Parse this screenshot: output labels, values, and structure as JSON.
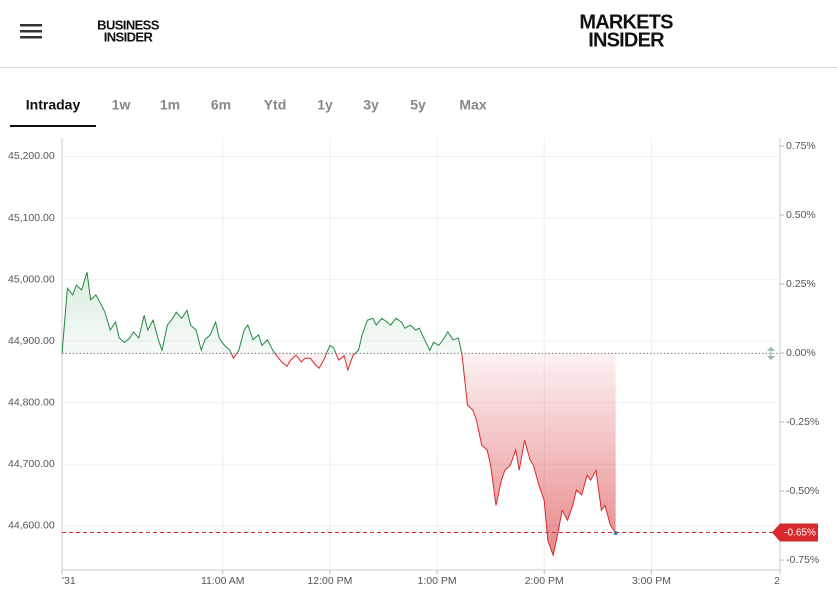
{
  "header": {
    "left_logo": [
      "BUSINESS",
      "INSIDER"
    ],
    "right_logo": [
      "MARKETS",
      "INSIDER"
    ]
  },
  "tabs": [
    "Intraday",
    "1w",
    "1m",
    "6m",
    "Ytd",
    "1y",
    "3y",
    "5y",
    "Max"
  ],
  "active_tab": 0,
  "chart_data": {
    "type": "line",
    "x": [
      570,
      573,
      576,
      578,
      581,
      584,
      586,
      589,
      592,
      594,
      597,
      600,
      602,
      605,
      608,
      610,
      613,
      616,
      618,
      621,
      624,
      626,
      629,
      632,
      634,
      637,
      640,
      642,
      645,
      648,
      650,
      653,
      656,
      658,
      661,
      664,
      666,
      669,
      672,
      674,
      677,
      680,
      682,
      685,
      688,
      690,
      693,
      696,
      698,
      701,
      704,
      706,
      709,
      712,
      714,
      717,
      720,
      722,
      725,
      728,
      730,
      733,
      736,
      738,
      741,
      744,
      746,
      749,
      752,
      754,
      757,
      760,
      762,
      765,
      768,
      770,
      773,
      776,
      778,
      781,
      784,
      786,
      789,
      792,
      794,
      797,
      800,
      802,
      805,
      808,
      810,
      813,
      816,
      818,
      821,
      824,
      826,
      829,
      832,
      834,
      837,
      840,
      842,
      845,
      848,
      850,
      853,
      856,
      858,
      861,
      864,
      866,
      869,
      872,
      874,
      877,
      880
    ],
    "values": [
      44880,
      44986,
      44975,
      44991,
      44983,
      45012,
      44967,
      44975,
      44959,
      44947,
      44918,
      44931,
      44905,
      44898,
      44905,
      44915,
      44905,
      44942,
      44918,
      44934,
      44902,
      44885,
      44926,
      44937,
      44947,
      44937,
      44950,
      44926,
      44918,
      44885,
      44902,
      44910,
      44931,
      44905,
      44893,
      44885,
      44872,
      44885,
      44918,
      44926,
      44902,
      44910,
      44893,
      44902,
      44885,
      44877,
      44866,
      44859,
      44869,
      44877,
      44866,
      44872,
      44872,
      44861,
      44856,
      44872,
      44893,
      44889,
      44869,
      44876,
      44853,
      44877,
      44885,
      44910,
      44934,
      44937,
      44926,
      44937,
      44931,
      44926,
      44937,
      44931,
      44921,
      44926,
      44918,
      44921,
      44902,
      44885,
      44898,
      44893,
      44905,
      44915,
      44902,
      44905,
      44877,
      44796,
      44788,
      44772,
      44731,
      44723,
      44698,
      44633,
      44674,
      44690,
      44698,
      44723,
      44690,
      44739,
      44707,
      44698,
      44666,
      44641,
      44576,
      44552,
      44593,
      44625,
      44609,
      44633,
      44658,
      44650,
      44682,
      44674,
      44690,
      44625,
      44633,
      44601,
      44588
    ],
    "previous_close": 44880,
    "colors": {
      "up": "#1f8a3e",
      "down": "#d62a2e",
      "last_point": "#3a86c8"
    },
    "xlim": [
      570,
      972
    ],
    "xticks": [
      {
        "value": 570,
        "label": "'31"
      },
      {
        "value": 660,
        "label": "11:00 AM"
      },
      {
        "value": 720,
        "label": "12:00 PM"
      },
      {
        "value": 780,
        "label": "1:00 PM"
      },
      {
        "value": 840,
        "label": "2:00 PM"
      },
      {
        "value": 900,
        "label": "3:00 PM"
      },
      {
        "value": 972,
        "label": "2"
      }
    ],
    "ylim": [
      44528,
      45230
    ],
    "yticks": [
      {
        "value": 45200,
        "label": "45,200.00"
      },
      {
        "value": 45100,
        "label": "45,100.00"
      },
      {
        "value": 45000,
        "label": "45,000.00"
      },
      {
        "value": 44900,
        "label": "44,900.00"
      },
      {
        "value": 44800,
        "label": "44,800.00"
      },
      {
        "value": 44700,
        "label": "44,700.00"
      },
      {
        "value": 44600,
        "label": "44,600.00"
      }
    ],
    "y2lim": [
      -0.786,
      0.779
    ],
    "y2ticks": [
      {
        "value": 0.75,
        "label": "0.75%"
      },
      {
        "value": 0.5,
        "label": "0.50%"
      },
      {
        "value": 0.25,
        "label": "0.25%"
      },
      {
        "value": 0,
        "label": "0.00%"
      },
      {
        "value": -0.25,
        "label": "-0.25%"
      },
      {
        "value": -0.5,
        "label": "-0.50%"
      },
      {
        "value": -0.75,
        "label": "-0.75%"
      }
    ],
    "last_change": {
      "value": -0.65,
      "label": "-0.65%"
    },
    "grid": true
  }
}
